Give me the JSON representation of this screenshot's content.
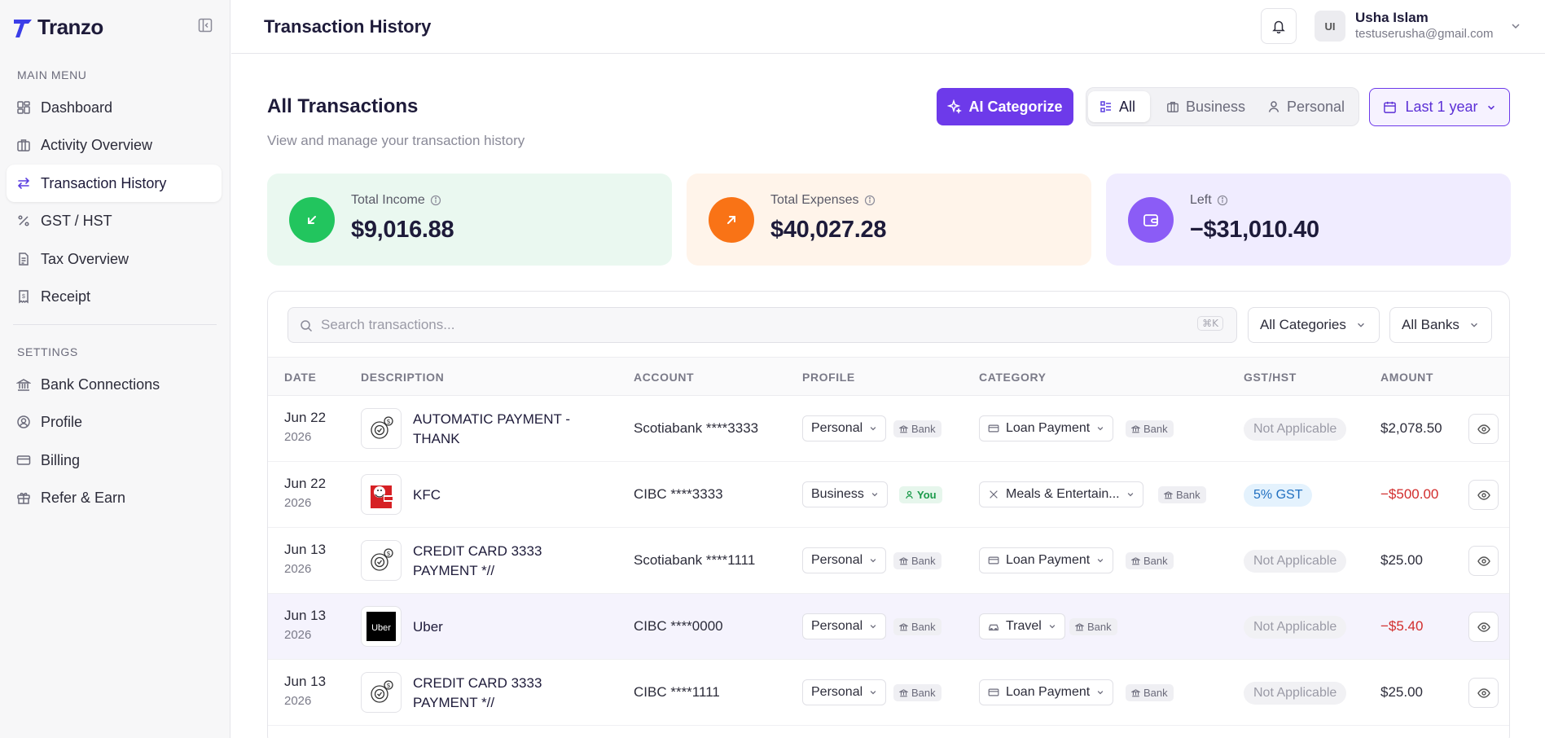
{
  "brand": {
    "name": "Tranzo"
  },
  "sidebar": {
    "main_label": "MAIN MENU",
    "main_items": [
      {
        "label": "Dashboard"
      },
      {
        "label": "Activity Overview"
      },
      {
        "label": "Transaction History"
      },
      {
        "label": "GST / HST"
      },
      {
        "label": "Tax Overview"
      },
      {
        "label": "Receipt"
      }
    ],
    "settings_label": "SETTINGS",
    "settings_items": [
      {
        "label": "Bank Connections"
      },
      {
        "label": "Profile"
      },
      {
        "label": "Billing"
      },
      {
        "label": "Refer & Earn"
      }
    ],
    "active_item": "Transaction History"
  },
  "header": {
    "title": "Transaction History",
    "user": {
      "initials": "UI",
      "name": "Usha Islam",
      "email": "testuserusha@gmail.com"
    }
  },
  "main": {
    "title": "All Transactions",
    "subtitle": "View and manage your transaction history",
    "ai_button": "AI Categorize",
    "segments": [
      "All",
      "Business",
      "Personal"
    ],
    "active_segment": "All",
    "range": "Last 1 year"
  },
  "stats": {
    "income": {
      "label": "Total Income",
      "value": "$9,016.88"
    },
    "expenses": {
      "label": "Total Expenses",
      "value": "$40,027.28"
    },
    "left": {
      "label": "Left",
      "value": "−$31,010.40"
    }
  },
  "table": {
    "search_placeholder": "Search transactions...",
    "search_shortcut": "⌘K",
    "filters": {
      "categories": "All Categories",
      "banks": "All Banks"
    },
    "columns": [
      "DATE",
      "DESCRIPTION",
      "ACCOUNT",
      "PROFILE",
      "CATEGORY",
      "GST/HST",
      "AMOUNT"
    ],
    "rows": [
      {
        "date": "Jun 22",
        "year": "2026",
        "description": "AUTOMATIC PAYMENT - THANK",
        "logo": "payment-icon",
        "account": "Scotiabank ****3333",
        "profile": "Personal",
        "profile_source": "Bank",
        "category": "Loan Payment",
        "category_source": "Bank",
        "gst": "Not Applicable",
        "amount": "$2,078.50"
      },
      {
        "date": "Jun 22",
        "year": "2026",
        "description": "KFC",
        "logo": "kfc-logo",
        "account": "CIBC ****3333",
        "profile": "Business",
        "profile_source": "You",
        "category": "Meals & Entertain...",
        "category_source": "Bank",
        "gst": "5% GST",
        "amount": "−$500.00"
      },
      {
        "date": "Jun 13",
        "year": "2026",
        "description": "CREDIT CARD 3333 PAYMENT *//",
        "logo": "payment-icon",
        "account": "Scotiabank ****1111",
        "profile": "Personal",
        "profile_source": "Bank",
        "category": "Loan Payment",
        "category_source": "Bank",
        "gst": "Not Applicable",
        "amount": "$25.00"
      },
      {
        "date": "Jun 13",
        "year": "2026",
        "description": "Uber",
        "logo": "uber-logo",
        "account": "CIBC ****0000",
        "profile": "Personal",
        "profile_source": "Bank",
        "category": "Travel",
        "category_source": "Bank",
        "gst": "Not Applicable",
        "amount": "−$5.40"
      },
      {
        "date": "Jun 13",
        "year": "2026",
        "description": "CREDIT CARD 3333 PAYMENT *//",
        "logo": "payment-icon",
        "account": "CIBC ****1111",
        "profile": "Personal",
        "profile_source": "Bank",
        "category": "Loan Payment",
        "category_source": "Bank",
        "gst": "Not Applicable",
        "amount": "$25.00"
      }
    ]
  },
  "colors": {
    "accent": "#6d3aea",
    "income": "#22c55e",
    "expense": "#f97316",
    "left": "#8b5cf6",
    "negative": "#d22d2d"
  }
}
